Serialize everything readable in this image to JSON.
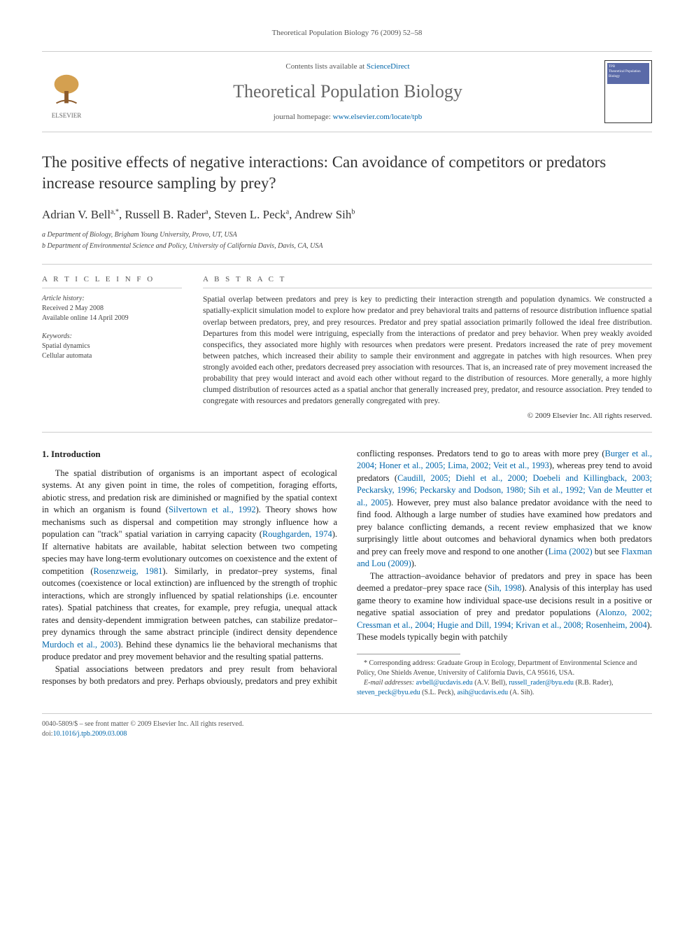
{
  "running_head": "Theoretical Population Biology 76 (2009) 52–58",
  "header": {
    "contents_prefix": "Contents lists available at ",
    "contents_link": "ScienceDirect",
    "journal_name": "Theoretical Population Biology",
    "homepage_prefix": "journal homepage: ",
    "homepage_link": "www.elsevier.com/locate/tpb",
    "publisher": "ELSEVIER",
    "cover_label_top": "TPB",
    "cover_label_mid": "Theoretical Population Biology"
  },
  "title": "The positive effects of negative interactions: Can avoidance of competitors or predators increase resource sampling by prey?",
  "authors_html": "Adrian V. Bell<sup>a,*</sup>, Russell B. Rader<sup>a</sup>, Steven L. Peck<sup>a</sup>, Andrew Sih<sup>b</sup>",
  "affiliations": [
    "a Department of Biology, Brigham Young University, Provo, UT, USA",
    "b Department of Environmental Science and Policy, University of California Davis, Davis, CA, USA"
  ],
  "article_info": {
    "heading": "A R T I C L E   I N F O",
    "history_label": "Article history:",
    "received": "Received 2 May 2008",
    "online": "Available online 14 April 2009",
    "keywords_label": "Keywords:",
    "keywords": [
      "Spatial dynamics",
      "Cellular automata"
    ]
  },
  "abstract": {
    "heading": "A B S T R A C T",
    "text": "Spatial overlap between predators and prey is key to predicting their interaction strength and population dynamics. We constructed a spatially-explicit simulation model to explore how predator and prey behavioral traits and patterns of resource distribution influence spatial overlap between predators, prey, and prey resources. Predator and prey spatial association primarily followed the ideal free distribution. Departures from this model were intriguing, especially from the interactions of predator and prey behavior. When prey weakly avoided conspecifics, they associated more highly with resources when predators were present. Predators increased the rate of prey movement between patches, which increased their ability to sample their environment and aggregate in patches with high resources. When prey strongly avoided each other, predators decreased prey association with resources. That is, an increased rate of prey movement increased the probability that prey would interact and avoid each other without regard to the distribution of resources. More generally, a more highly clumped distribution of resources acted as a spatial anchor that generally increased prey, predator, and resource association. Prey tended to congregate with resources and predators generally congregated with prey.",
    "copyright": "© 2009 Elsevier Inc. All rights reserved."
  },
  "body": {
    "section_heading": "1. Introduction",
    "p1_a": "The spatial distribution of organisms is an important aspect of ecological systems. At any given point in time, the roles of competition, foraging efforts, abiotic stress, and predation risk are diminished or magnified by the spatial context in which an organism is found (",
    "p1_ref1": "Silvertown et al., 1992",
    "p1_b": "). Theory shows how mechanisms such as dispersal and competition may strongly influence how a population can \"track\" spatial variation in carrying capacity (",
    "p1_ref2": "Roughgarden, 1974",
    "p1_c": "). If alternative habitats are available, habitat selection between two competing species may have long-term evolutionary outcomes on coexistence and the extent of competition (",
    "p1_ref3": "Rosenzweig, 1981",
    "p1_d": "). Similarly, in predator–prey systems, final outcomes (coexistence or local extinction) are influenced by the strength of trophic interactions, which are strongly influenced by spatial relationships (i.e. encounter rates). Spatial patchiness that creates, for example, prey refugia, unequal attack rates and density-dependent immigration between patches, can stabilize predator–prey dynamics through the same abstract principle (indirect density dependence ",
    "p1_ref4": "Murdoch et al., 2003",
    "p1_e": "). Behind these dynamics lie the behavioral mechanisms that produce predator and prey movement behavior and the resulting spatial patterns.",
    "p2_a": "Spatial associations between predators and prey result from behavioral responses by both predators and prey. Perhaps obviously, predators and prey exhibit conflicting responses. Predators tend to go to areas with more prey (",
    "p2_refs1": "Burger et al., 2004; Honer et al., 2005; Lima, 2002; Veit et al., 1993",
    "p2_b": "), whereas prey tend to avoid predators (",
    "p2_refs2": "Caudill, 2005; Diehl et al., 2000; Doebeli and Killingback, 2003; Peckarsky, 1996; Peckarsky and Dodson, 1980; Sih et al., 1992; Van de Meutter et al., 2005",
    "p2_c": "). However, prey must also balance predator avoidance with the need to find food. Although a large number of studies have examined how predators and prey balance conflicting demands, a recent review emphasized that we know surprisingly little about outcomes and behavioral dynamics when both predators and prey can freely move and respond to one another (",
    "p2_ref3": "Lima (2002)",
    "p2_d": " but see ",
    "p2_ref4": "Flaxman and Lou (2009)",
    "p2_e": ").",
    "p3_a": "The attraction–avoidance behavior of predators and prey in space has been deemed a predator–prey space race (",
    "p3_ref1": "Sih, 1998",
    "p3_b": "). Analysis of this interplay has used game theory to examine how individual space-use decisions result in a positive or negative spatial association of prey and predator populations (",
    "p3_refs2": "Alonzo, 2002; Cressman et al., 2004; Hugie and Dill, 1994; Krivan et al., 2008; Rosenheim, 2004",
    "p3_c": "). These models typically begin with patchily"
  },
  "footnotes": {
    "corr_label": "* Corresponding address: Graduate Group in Ecology, Department of Environmental Science and Policy, One Shields Avenue, University of California Davis, CA 95616, USA.",
    "email_label": "E-mail addresses:",
    "emails": [
      {
        "addr": "avbell@ucdavis.edu",
        "who": "(A.V. Bell)"
      },
      {
        "addr": "russell_rader@byu.edu",
        "who": "(R.B. Rader)"
      },
      {
        "addr": "steven_peck@byu.edu",
        "who": "(S.L. Peck)"
      },
      {
        "addr": "asih@ucdavis.edu",
        "who": "(A. Sih)"
      }
    ]
  },
  "footer": {
    "left": "0040-5809/$ – see front matter © 2009 Elsevier Inc. All rights reserved.",
    "doi_label": "doi:",
    "doi": "10.1016/j.tpb.2009.03.008"
  },
  "colors": {
    "link": "#0066aa",
    "text": "#333333",
    "rule": "#cccccc"
  }
}
